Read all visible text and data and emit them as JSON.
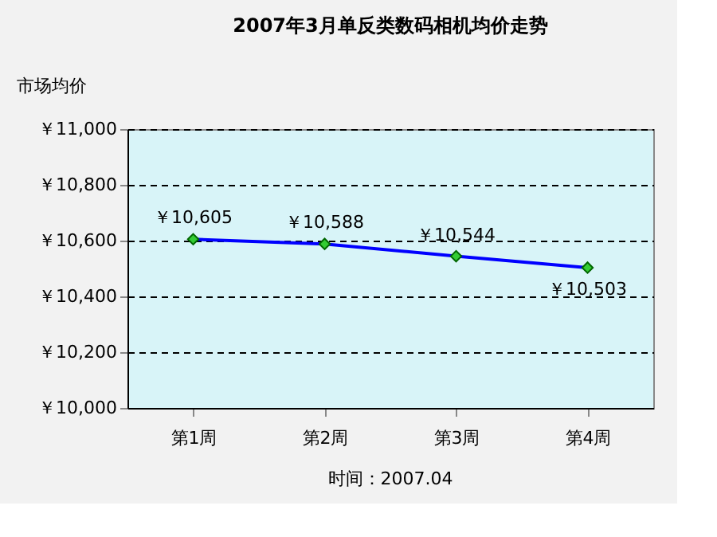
{
  "chart_data": {
    "type": "line",
    "title": "2007年3月单反类数码相机均价走势",
    "ylabel": "市场均价",
    "categories": [
      "第1周",
      "第2周",
      "第3周",
      "第4周"
    ],
    "series": [
      {
        "color": "#0000ff",
        "values": [
          10605,
          10588,
          10544,
          10503
        ],
        "value_labels": [
          "￥10,605",
          "￥10,588",
          "￥10,544",
          "￥10,503"
        ]
      }
    ],
    "ylim": [
      10000,
      11000
    ],
    "yticks": [
      {
        "value": 10000,
        "label": "￥10,000"
      },
      {
        "value": 10200,
        "label": "￥10,200"
      },
      {
        "value": 10400,
        "label": "￥10,400"
      },
      {
        "value": 10600,
        "label": "￥10,600"
      },
      {
        "value": 10800,
        "label": "￥10,800"
      },
      {
        "value": 11000,
        "label": "￥11,000"
      }
    ],
    "grid": "y",
    "marker": "diamond",
    "line_style": "solid",
    "annotations": [
      "时间：2007.04"
    ]
  }
}
